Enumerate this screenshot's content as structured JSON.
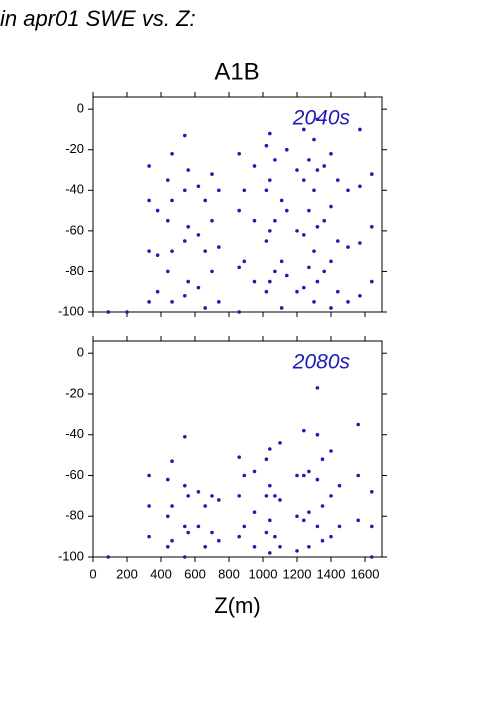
{
  "header": {
    "title": "in apr01 SWE vs. Z:",
    "scenario": "A1B"
  },
  "chart_data": [
    {
      "type": "scatter",
      "annotation": "2040s",
      "color": "#1c1cb4",
      "xlim": [
        0,
        1700
      ],
      "ylim": [
        -100,
        6
      ],
      "xticks": [
        0,
        200,
        400,
        600,
        800,
        1000,
        1200,
        1400,
        1600
      ],
      "yticks": [
        0,
        -20,
        -40,
        -60,
        -80,
        -100
      ],
      "x": [
        90,
        200,
        330,
        330,
        330,
        330,
        380,
        380,
        380,
        440,
        440,
        440,
        465,
        465,
        465,
        465,
        540,
        540,
        540,
        540,
        560,
        560,
        560,
        620,
        620,
        620,
        660,
        660,
        660,
        700,
        700,
        700,
        740,
        740,
        740,
        860,
        860,
        860,
        860,
        890,
        890,
        950,
        950,
        950,
        1020,
        1020,
        1020,
        1020,
        1040,
        1040,
        1040,
        1040,
        1070,
        1070,
        1070,
        1110,
        1110,
        1110,
        1140,
        1140,
        1140,
        1200,
        1200,
        1200,
        1240,
        1240,
        1240,
        1240,
        1270,
        1270,
        1270,
        1300,
        1300,
        1300,
        1300,
        1320,
        1320,
        1320,
        1320,
        1360,
        1360,
        1360,
        1400,
        1400,
        1400,
        1400,
        1440,
        1440,
        1440,
        1500,
        1500,
        1500,
        1570,
        1570,
        1570,
        1570,
        1640,
        1640,
        1640
      ],
      "y": [
        -100,
        -100,
        -28,
        -45,
        -70,
        -95,
        -50,
        -72,
        -90,
        -35,
        -55,
        -80,
        -22,
        -45,
        -70,
        -95,
        -13,
        -40,
        -65,
        -92,
        -30,
        -58,
        -85,
        -38,
        -62,
        -88,
        -45,
        -70,
        -98,
        -32,
        -55,
        -80,
        -40,
        -68,
        -95,
        -22,
        -50,
        -78,
        -100,
        -40,
        -75,
        -28,
        -55,
        -85,
        -18,
        -40,
        -65,
        -90,
        -12,
        -35,
        -60,
        -85,
        -25,
        -55,
        -80,
        -45,
        -75,
        -98,
        -20,
        -50,
        -82,
        -30,
        -60,
        -90,
        -10,
        -35,
        -62,
        -88,
        -25,
        -50,
        -78,
        -15,
        -40,
        -70,
        -95,
        -5,
        -30,
        -58,
        -85,
        -28,
        -55,
        -80,
        -22,
        -48,
        -75,
        -98,
        -35,
        -65,
        -90,
        -40,
        -68,
        -95,
        -10,
        -38,
        -66,
        -92,
        -32,
        -58,
        -85
      ]
    },
    {
      "type": "scatter",
      "annotation": "2080s",
      "color": "#1c1cb4",
      "xlabel": "Z(m)",
      "xlim": [
        0,
        1700
      ],
      "ylim": [
        -100,
        6
      ],
      "xticks": [
        0,
        200,
        400,
        600,
        800,
        1000,
        1200,
        1400,
        1600
      ],
      "yticks": [
        0,
        -20,
        -40,
        -60,
        -80,
        -100
      ],
      "x": [
        90,
        330,
        330,
        330,
        440,
        440,
        440,
        465,
        465,
        465,
        540,
        540,
        540,
        540,
        560,
        560,
        620,
        620,
        660,
        660,
        700,
        700,
        740,
        740,
        860,
        860,
        860,
        890,
        890,
        950,
        950,
        950,
        1020,
        1020,
        1020,
        1040,
        1040,
        1040,
        1040,
        1070,
        1070,
        1100,
        1100,
        1100,
        1200,
        1200,
        1200,
        1240,
        1240,
        1240,
        1270,
        1270,
        1270,
        1320,
        1320,
        1320,
        1320,
        1350,
        1350,
        1350,
        1400,
        1400,
        1400,
        1450,
        1450,
        1560,
        1560,
        1560,
        1640,
        1640,
        1640
      ],
      "y": [
        -100,
        -60,
        -75,
        -90,
        -62,
        -80,
        -95,
        -53,
        -75,
        -92,
        -41,
        -65,
        -85,
        -100,
        -70,
        -88,
        -68,
        -85,
        -75,
        -95,
        -70,
        -88,
        -72,
        -92,
        -51,
        -70,
        -90,
        -60,
        -85,
        -58,
        -78,
        -95,
        -52,
        -70,
        -88,
        -47,
        -65,
        -82,
        -98,
        -70,
        -90,
        -44,
        -72,
        -95,
        -60,
        -80,
        -97,
        -38,
        -60,
        -82,
        -58,
        -78,
        -95,
        -17,
        -40,
        -62,
        -85,
        -52,
        -75,
        -92,
        -48,
        -70,
        -90,
        -65,
        -85,
        -35,
        -60,
        -82,
        -68,
        -85,
        -100
      ]
    }
  ]
}
